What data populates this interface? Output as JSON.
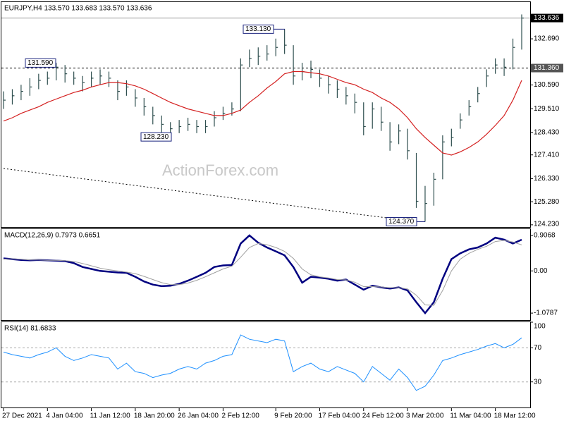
{
  "chart_data": [
    {
      "type": "ohlc",
      "title": "EURJPY,H4 133.570 133.683 133.570 133.636",
      "watermark": "ActionForex.com",
      "categories": [
        "27 Dec 2021",
        null,
        null,
        null,
        null,
        "4 Jan 04:00",
        null,
        null,
        null,
        null,
        "11 Jan 12:00",
        null,
        null,
        null,
        null,
        "18 Jan 20:00",
        null,
        null,
        null,
        null,
        "26 Jan 04:00",
        null,
        null,
        null,
        null,
        "2 Feb 12:00",
        null,
        null,
        null,
        null,
        null,
        "9 Feb 20:00",
        null,
        null,
        null,
        null,
        "17 Feb 04:00",
        null,
        null,
        null,
        null,
        "24 Feb 12:00",
        null,
        null,
        null,
        null,
        "3 Mar 20:00",
        null,
        null,
        null,
        null,
        "11 Mar 04:00",
        null,
        null,
        null,
        null,
        "18 Mar 12:00",
        null,
        null,
        null
      ],
      "series": [
        {
          "color": "#2f4f4f",
          "high": [
            130.3,
            130.4,
            130.6,
            130.9,
            131.1,
            131.2,
            131.59,
            131.5,
            131.2,
            131.0,
            131.2,
            131.3,
            131.2,
            130.8,
            130.8,
            130.4,
            130.0,
            129.6,
            129.2,
            128.9,
            129.0,
            129.1,
            129.0,
            129.0,
            129.4,
            129.6,
            129.8,
            131.8,
            132.2,
            132.3,
            132.4,
            132.7,
            133.13,
            132.4,
            131.6,
            131.7,
            131.3,
            131.0,
            130.8,
            130.5,
            130.2,
            129.8,
            129.8,
            129.6,
            128.9,
            128.8,
            128.6,
            127.5,
            126.0,
            126.6,
            128.3,
            128.6,
            129.3,
            129.9,
            130.5,
            131.3,
            131.8,
            131.8,
            132.7,
            133.8
          ],
          "low": [
            129.5,
            129.7,
            129.9,
            130.1,
            130.4,
            130.6,
            130.8,
            130.7,
            130.6,
            130.3,
            130.5,
            130.6,
            130.5,
            129.9,
            130.1,
            129.6,
            129.2,
            128.8,
            128.4,
            128.23,
            128.4,
            128.5,
            128.4,
            128.4,
            128.7,
            129.0,
            129.2,
            129.4,
            131.4,
            131.5,
            131.7,
            131.9,
            132.0,
            130.6,
            130.8,
            130.9,
            130.5,
            130.2,
            130.0,
            129.7,
            129.3,
            128.3,
            128.6,
            128.5,
            127.6,
            127.9,
            127.2,
            125.0,
            124.37,
            125.1,
            126.3,
            127.8,
            128.6,
            129.2,
            129.8,
            130.5,
            131.1,
            131.0,
            131.3,
            132.2
          ],
          "values": [
            129.9,
            130.1,
            130.3,
            130.5,
            130.8,
            130.9,
            131.4,
            131.1,
            130.9,
            130.7,
            130.9,
            131.0,
            130.9,
            130.3,
            130.5,
            130.0,
            129.6,
            129.2,
            128.8,
            128.6,
            128.7,
            128.8,
            128.7,
            128.7,
            129.1,
            129.3,
            129.5,
            131.5,
            131.8,
            131.9,
            132.0,
            132.3,
            132.4,
            131.0,
            131.2,
            131.3,
            130.9,
            130.6,
            130.4,
            130.1,
            129.8,
            128.7,
            129.5,
            128.9,
            128.0,
            128.5,
            127.6,
            125.3,
            125.2,
            126.3,
            128.0,
            128.2,
            129.0,
            129.6,
            130.2,
            131.0,
            131.5,
            131.4,
            132.3,
            133.636
          ]
        },
        {
          "color": "#d42020",
          "values": [
            128.95,
            129.1,
            129.3,
            129.45,
            129.6,
            129.8,
            129.95,
            130.1,
            130.25,
            130.35,
            130.5,
            130.6,
            130.7,
            130.7,
            130.65,
            130.55,
            130.4,
            130.2,
            130.0,
            129.8,
            129.65,
            129.5,
            129.4,
            129.3,
            129.2,
            129.2,
            129.3,
            129.45,
            129.8,
            130.1,
            130.45,
            130.75,
            131.1,
            131.2,
            131.2,
            131.15,
            131.1,
            131.0,
            130.85,
            130.7,
            130.6,
            130.4,
            130.25,
            130.0,
            129.8,
            129.5,
            129.1,
            128.6,
            128.2,
            127.85,
            127.5,
            127.4,
            127.55,
            127.75,
            128.0,
            128.35,
            128.75,
            129.2,
            129.9,
            130.8
          ]
        }
      ],
      "ylim": [
        124.13,
        134.36
      ],
      "yticks": [
        {
          "value": 132.69,
          "label": "132.690"
        },
        {
          "value": 130.59,
          "label": "130.590"
        },
        {
          "value": 129.51,
          "label": "129.510"
        },
        {
          "value": 128.43,
          "label": "128.430"
        },
        {
          "value": 127.41,
          "label": "127.410"
        },
        {
          "value": 126.33,
          "label": "126.330"
        },
        {
          "value": 125.28,
          "label": "125.280"
        },
        {
          "value": 124.23,
          "label": "124.230"
        }
      ],
      "grid": false,
      "price_lines": [
        {
          "value": 133.636,
          "label": "133.636",
          "style": "solid"
        },
        {
          "value": 131.36,
          "label": "131.360",
          "style": "dashed"
        }
      ],
      "annotations": [
        {
          "value": 131.59,
          "label": "131.590"
        },
        {
          "value": 133.13,
          "label": "133.130"
        },
        {
          "value": 128.23,
          "label": "128.230"
        },
        {
          "value": 124.37,
          "label": "124.370"
        }
      ]
    },
    {
      "type": "macd",
      "title": "MACD(12,26,9) 0.7973 0.6651",
      "series": [
        {
          "color": "#000080",
          "values": [
            0.32,
            0.3,
            0.28,
            0.27,
            0.28,
            0.27,
            0.26,
            0.25,
            0.2,
            0.1,
            0.05,
            0.0,
            -0.02,
            -0.04,
            -0.05,
            -0.15,
            -0.27,
            -0.35,
            -0.39,
            -0.38,
            -0.33,
            -0.25,
            -0.15,
            -0.05,
            0.1,
            0.14,
            0.15,
            0.7,
            0.9068,
            0.72,
            0.6,
            0.5,
            0.4,
            0.1,
            -0.3,
            -0.15,
            -0.17,
            -0.2,
            -0.25,
            -0.22,
            -0.35,
            -0.48,
            -0.38,
            -0.42,
            -0.45,
            -0.42,
            -0.5,
            -0.8,
            -1.0787,
            -0.8,
            -0.2,
            0.3,
            0.45,
            0.55,
            0.6,
            0.7,
            0.85,
            0.8,
            0.7,
            0.7973
          ]
        },
        {
          "color": "#a0a0a0",
          "values": [
            0.3,
            0.31,
            0.3,
            0.28,
            0.28,
            0.27,
            0.27,
            0.26,
            0.24,
            0.19,
            0.13,
            0.07,
            0.03,
            0.0,
            -0.03,
            -0.07,
            -0.14,
            -0.22,
            -0.3,
            -0.35,
            -0.35,
            -0.31,
            -0.24,
            -0.15,
            -0.05,
            0.05,
            0.12,
            0.35,
            0.6,
            0.7,
            0.67,
            0.6,
            0.5,
            0.32,
            0.05,
            -0.1,
            -0.15,
            -0.18,
            -0.22,
            -0.23,
            -0.29,
            -0.4,
            -0.4,
            -0.41,
            -0.43,
            -0.43,
            -0.46,
            -0.62,
            -0.87,
            -0.88,
            -0.5,
            0.0,
            0.3,
            0.45,
            0.55,
            0.63,
            0.75,
            0.78,
            0.74,
            0.6651
          ]
        }
      ],
      "ylim": [
        -1.257,
        1.068
      ],
      "yticks": [
        0.9068,
        {
          "value": 0,
          "label": "0.00"
        },
        -1.0787
      ],
      "grid": false
    },
    {
      "type": "line",
      "title": "RSI(14) 81.6833",
      "series": [
        {
          "color": "#1e90ff",
          "values": [
            65,
            62,
            60,
            58,
            62,
            65,
            70,
            60,
            55,
            58,
            62,
            60,
            58,
            45,
            52,
            42,
            40,
            35,
            38,
            40,
            45,
            48,
            45,
            52,
            55,
            60,
            62,
            85,
            80,
            78,
            76,
            80,
            78,
            42,
            48,
            52,
            45,
            42,
            48,
            44,
            40,
            30,
            48,
            40,
            32,
            45,
            35,
            20,
            25,
            38,
            55,
            58,
            62,
            65,
            68,
            72,
            75,
            70,
            74,
            81.6833
          ]
        }
      ],
      "ylim": [
        0,
        100
      ],
      "yticks": [
        100,
        70,
        30
      ],
      "grid": true
    }
  ]
}
